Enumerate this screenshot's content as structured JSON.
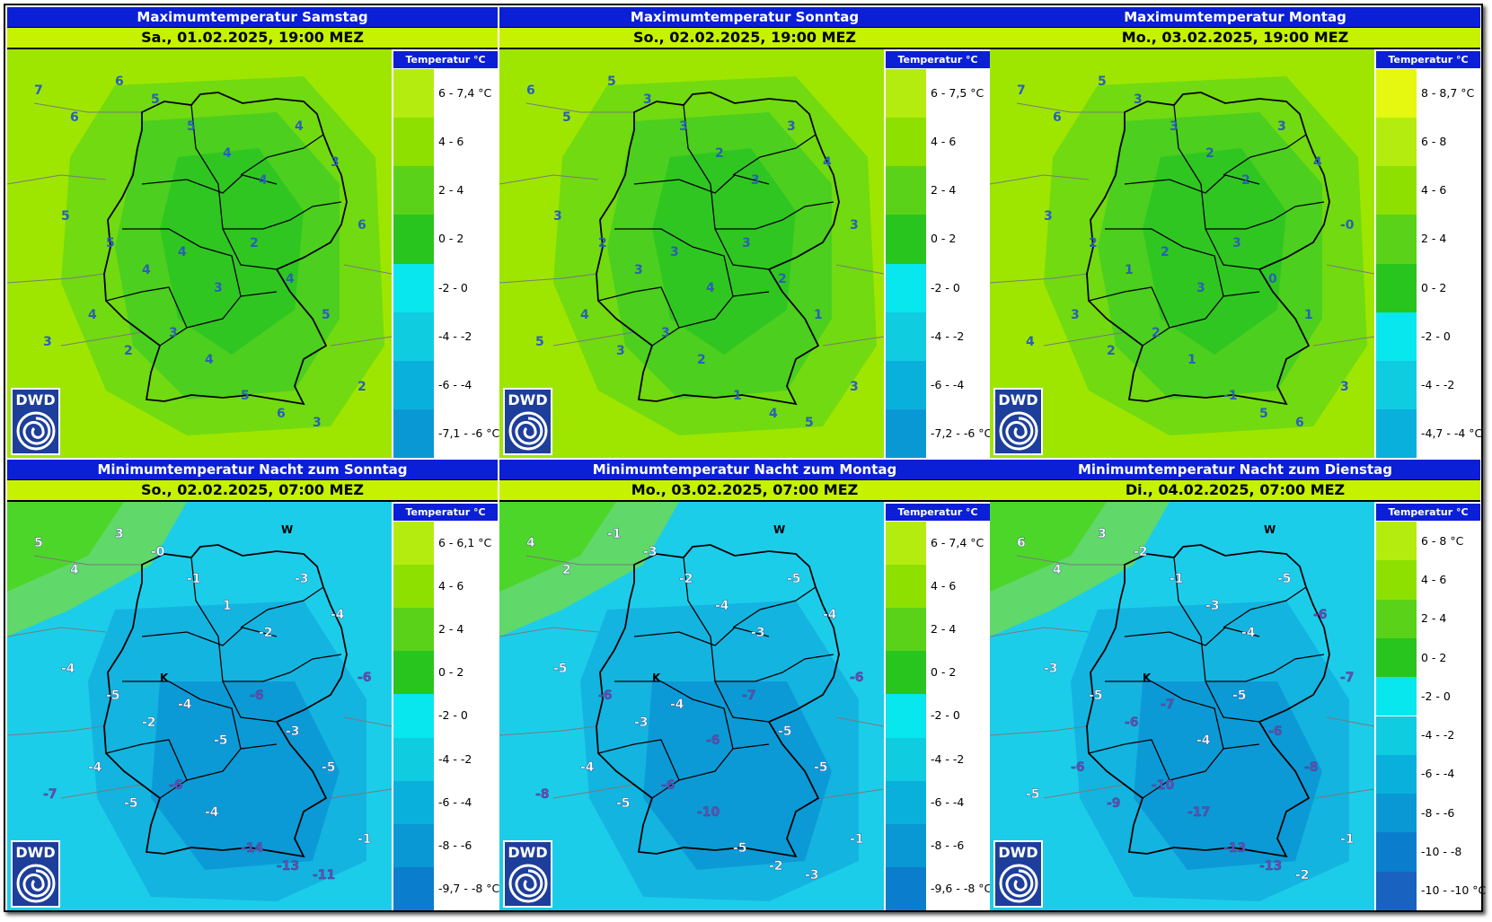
{
  "panels": [
    {
      "title": "Maximumtemperatur Samstag",
      "date": "Sa., 01.02.2025, 19:00 MEZ",
      "legend_title": "Temperatur °C",
      "legend": [
        {
          "label": "6 - 7,4 °C",
          "color": "#b4ec10"
        },
        {
          "label": "4 - 6",
          "color": "#8ee000"
        },
        {
          "label": "2 - 4",
          "color": "#5ad21a"
        },
        {
          "label": "0 - 2",
          "color": "#28c51e"
        },
        {
          "label": "-2 - 0",
          "color": "#08e6ee"
        },
        {
          "label": "-4 - -2",
          "color": "#10cce0"
        },
        {
          "label": "-6 - -4",
          "color": "#0ab0dc"
        },
        {
          "label": "-7,1 - -6 °C",
          "color": "#0a98d4"
        }
      ],
      "map_numbers": [
        "7",
        "6",
        "6",
        "5",
        "5",
        "4",
        "4",
        "4",
        "3",
        "5",
        "5",
        "4",
        "4",
        "3",
        "2",
        "4",
        "5",
        "6",
        "3",
        "4",
        "2",
        "3",
        "4",
        "5",
        "6",
        "3",
        "2"
      ]
    },
    {
      "title": "Maximumtemperatur Sonntag",
      "date": "So., 02.02.2025, 19:00 MEZ",
      "legend_title": "Temperatur °C",
      "legend": [
        {
          "label": "6 - 7,5 °C",
          "color": "#b4ec10"
        },
        {
          "label": "4 - 6",
          "color": "#8ee000"
        },
        {
          "label": "2 - 4",
          "color": "#5ad21a"
        },
        {
          "label": "0 - 2",
          "color": "#28c51e"
        },
        {
          "label": "-2 - 0",
          "color": "#08e6ee"
        },
        {
          "label": "-4 - -2",
          "color": "#10cce0"
        },
        {
          "label": "-6 - -4",
          "color": "#0ab0dc"
        },
        {
          "label": "-7,2 - -6 °C",
          "color": "#0a98d4"
        }
      ],
      "map_numbers": [
        "6",
        "5",
        "5",
        "3",
        "3",
        "2",
        "3",
        "3",
        "4",
        "3",
        "2",
        "3",
        "3",
        "4",
        "3",
        "2",
        "1",
        "3",
        "5",
        "4",
        "3",
        "3",
        "2",
        "1",
        "4",
        "5",
        "3"
      ]
    },
    {
      "title": "Maximumtemperatur Montag",
      "date": "Mo., 03.02.2025, 19:00 MEZ",
      "legend_title": "Temperatur °C",
      "legend": [
        {
          "label": "8 - 8,7 °C",
          "color": "#e6f810"
        },
        {
          "label": "6 - 8",
          "color": "#b4ec10"
        },
        {
          "label": "4 - 6",
          "color": "#8ee000"
        },
        {
          "label": "2 - 4",
          "color": "#5ad21a"
        },
        {
          "label": "0 - 2",
          "color": "#28c51e"
        },
        {
          "label": "-2 - 0",
          "color": "#08e6ee"
        },
        {
          "label": "-4 - -2",
          "color": "#10cce0"
        },
        {
          "label": "-4,7 - -4 °C",
          "color": "#0ab0dc"
        }
      ],
      "map_numbers": [
        "7",
        "6",
        "5",
        "3",
        "3",
        "2",
        "2",
        "3",
        "4",
        "3",
        "2",
        "1",
        "2",
        "3",
        "3",
        "0",
        "1",
        "-0",
        "4",
        "3",
        "2",
        "2",
        "1",
        "-1",
        "5",
        "6",
        "3"
      ]
    },
    {
      "title": "Minimumtemperatur Nacht zum Sonntag",
      "date": "So., 02.02.2025, 07:00 MEZ",
      "legend_title": "Temperatur °C",
      "legend": [
        {
          "label": "6 - 6,1 °C",
          "color": "#b4ec10"
        },
        {
          "label": "4 - 6",
          "color": "#8ee000"
        },
        {
          "label": "2 - 4",
          "color": "#5ad21a"
        },
        {
          "label": "0 - 2",
          "color": "#28c51e"
        },
        {
          "label": "-2 - 0",
          "color": "#08e6ee"
        },
        {
          "label": "-4 - -2",
          "color": "#10cce0"
        },
        {
          "label": "-6 - -4",
          "color": "#0ab0dc"
        },
        {
          "label": "-8 - -6",
          "color": "#0a98d4"
        },
        {
          "label": "-9,7 - -8 °C",
          "color": "#0a7ecc"
        }
      ],
      "map_numbers": [
        "5",
        "4",
        "3",
        "-0",
        "-1",
        "1",
        "-2",
        "-3",
        "-4",
        "-4",
        "-5",
        "-2",
        "-4",
        "-5",
        "-6",
        "-3",
        "-5",
        "-6",
        "-7",
        "-4",
        "-5",
        "-6",
        "-4",
        "-14",
        "-13",
        "-11",
        "-1"
      ]
    },
    {
      "title": "Minimumtemperatur Nacht zum Montag",
      "date": "Mo., 03.02.2025, 07:00 MEZ",
      "legend_title": "Temperatur °C",
      "legend": [
        {
          "label": "6 - 7,4 °C",
          "color": "#b4ec10"
        },
        {
          "label": "4 - 6",
          "color": "#8ee000"
        },
        {
          "label": "2 - 4",
          "color": "#5ad21a"
        },
        {
          "label": "0 - 2",
          "color": "#28c51e"
        },
        {
          "label": "-2 - 0",
          "color": "#08e6ee"
        },
        {
          "label": "-4 - -2",
          "color": "#10cce0"
        },
        {
          "label": "-6 - -4",
          "color": "#0ab0dc"
        },
        {
          "label": "-8 - -6",
          "color": "#0a98d4"
        },
        {
          "label": "-9,6 - -8 °C",
          "color": "#0a7ecc"
        }
      ],
      "map_numbers": [
        "4",
        "2",
        "-1",
        "-3",
        "-2",
        "-4",
        "-3",
        "-5",
        "-4",
        "-5",
        "-6",
        "-3",
        "-4",
        "-6",
        "-7",
        "-5",
        "-5",
        "-6",
        "-8",
        "-4",
        "-5",
        "-6",
        "-10",
        "-5",
        "-2",
        "-3",
        "-1"
      ]
    },
    {
      "title": "Minimumtemperatur Nacht zum Dienstag",
      "date": "Di., 04.02.2025, 07:00 MEZ",
      "legend_title": "Temperatur °C",
      "legend": [
        {
          "label": "6 - 8 °C",
          "color": "#b4ec10"
        },
        {
          "label": "4 - 6",
          "color": "#8ee000"
        },
        {
          "label": "2 - 4",
          "color": "#5ad21a"
        },
        {
          "label": "0 - 2",
          "color": "#28c51e"
        },
        {
          "label": "-2 - 0",
          "color": "#08e6ee"
        },
        {
          "label": "-4 - -2",
          "color": "#10cce0"
        },
        {
          "label": "-6 - -4",
          "color": "#0ab0dc"
        },
        {
          "label": "-8 - -6",
          "color": "#0a98d4"
        },
        {
          "label": "-10 - -8",
          "color": "#0a7ecc"
        },
        {
          "label": "-10 - -10 °C",
          "color": "#1a62c0"
        }
      ],
      "map_numbers": [
        "6",
        "4",
        "3",
        "-2",
        "-1",
        "-3",
        "-4",
        "-5",
        "-6",
        "-3",
        "-5",
        "-6",
        "-7",
        "-4",
        "-5",
        "-6",
        "-8",
        "-7",
        "-5",
        "-6",
        "-9",
        "-10",
        "-17",
        "-13",
        "-13",
        "-2",
        "-1"
      ]
    }
  ],
  "logo_text": "DWD",
  "map_marker_w": "W",
  "map_marker_k": "K"
}
